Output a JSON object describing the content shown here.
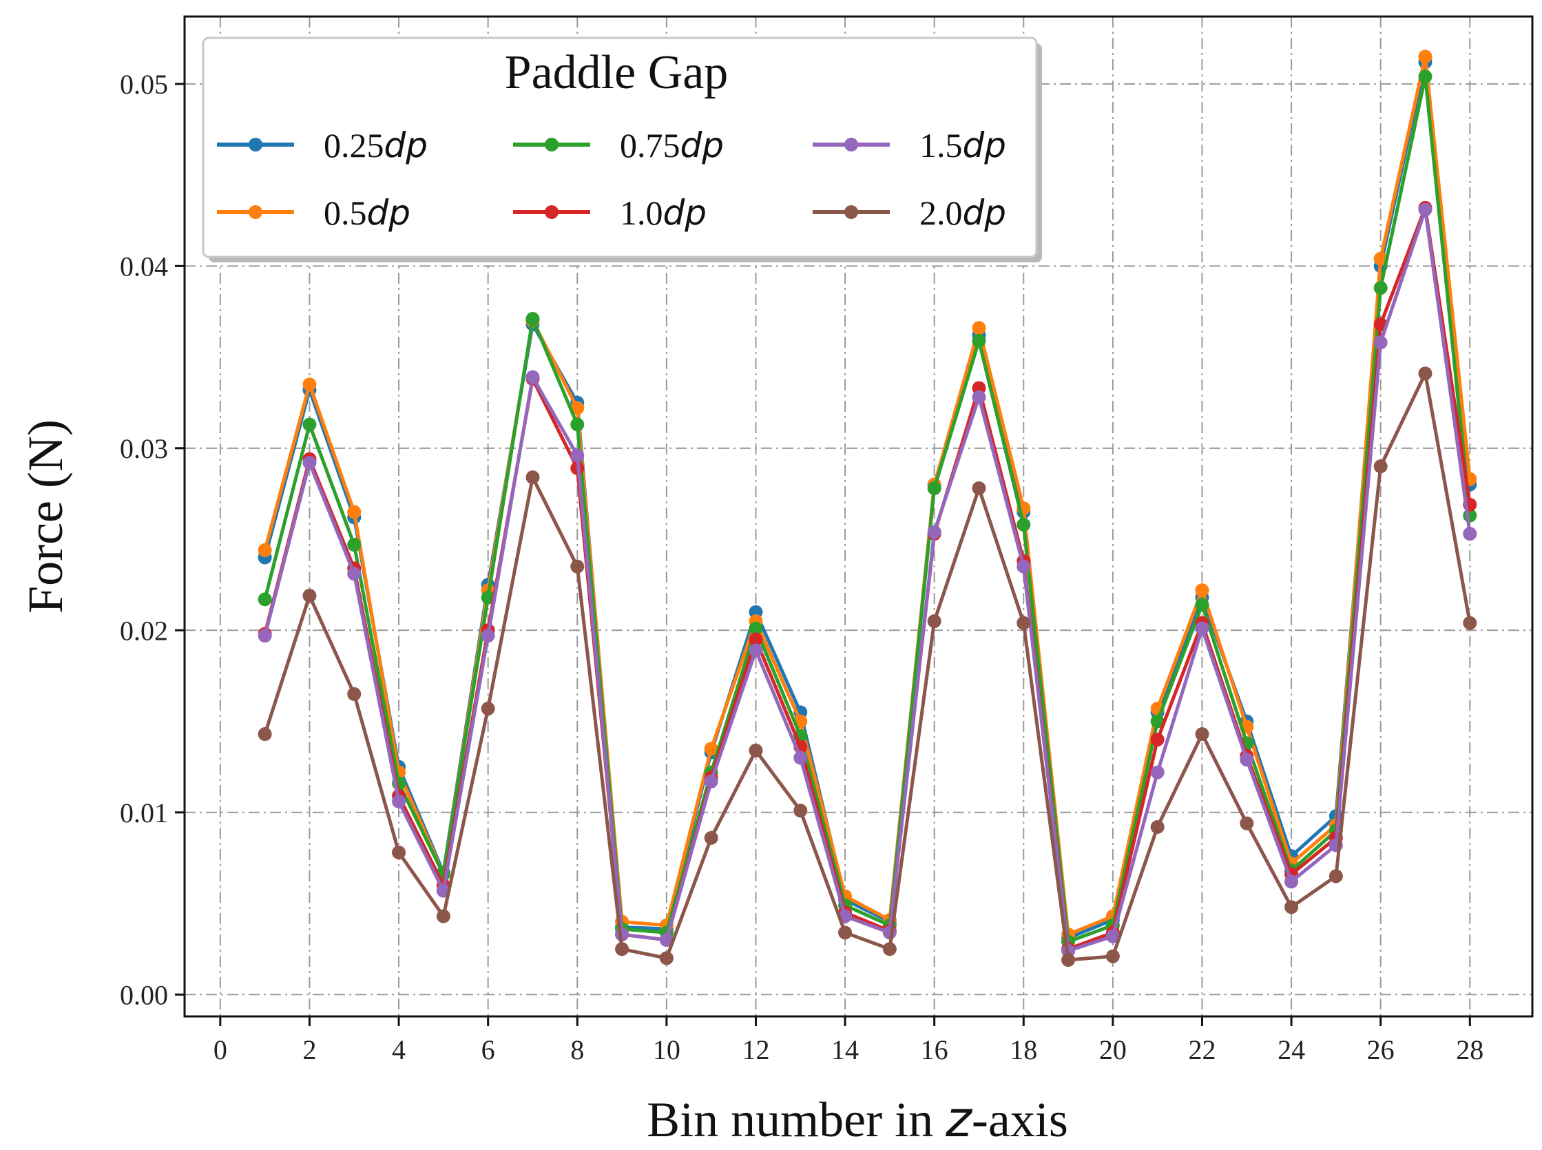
{
  "chart_data": {
    "type": "line",
    "xlabel": "Bin number in z-axis",
    "ylabel": "Force (N)",
    "xlim": [
      -0.8,
      29.4
    ],
    "ylim": [
      -0.0012,
      0.0537
    ],
    "x_ticks": [
      0,
      2,
      4,
      6,
      8,
      10,
      12,
      14,
      16,
      18,
      20,
      22,
      24,
      26,
      28
    ],
    "y_ticks": [
      0.0,
      0.01,
      0.02,
      0.03,
      0.04,
      0.05
    ],
    "y_tick_labels": [
      "0.00",
      "0.01",
      "0.02",
      "0.03",
      "0.04",
      "0.05"
    ],
    "grid": true,
    "legend": {
      "title": "Paddle Gap",
      "placement": "top-left",
      "columns": 3
    },
    "x": [
      1,
      2,
      3,
      4,
      5,
      6,
      7,
      8,
      9,
      10,
      11,
      12,
      13,
      14,
      15,
      16,
      17,
      18,
      19,
      20,
      21,
      22,
      23,
      24,
      25,
      26,
      27,
      28
    ],
    "series": [
      {
        "name": "0.25dp",
        "label_number": "0.25",
        "label_unit": "dp",
        "color": "#1f77b4",
        "values": [
          0.024,
          0.0332,
          0.0262,
          0.0125,
          0.0067,
          0.0225,
          0.0368,
          0.0325,
          0.0037,
          0.0036,
          0.0133,
          0.021,
          0.0155,
          0.0052,
          0.004,
          0.028,
          0.0362,
          0.0265,
          0.0031,
          0.0041,
          0.0155,
          0.0218,
          0.015,
          0.0076,
          0.0098,
          0.04,
          0.0512,
          0.028
        ]
      },
      {
        "name": "0.5dp",
        "label_number": "0.5",
        "label_unit": "dp",
        "color": "#ff7f0e",
        "values": [
          0.0244,
          0.0335,
          0.0265,
          0.0122,
          0.0066,
          0.0222,
          0.037,
          0.0322,
          0.004,
          0.0038,
          0.0135,
          0.0205,
          0.015,
          0.0054,
          0.0041,
          0.028,
          0.0366,
          0.0267,
          0.0033,
          0.0043,
          0.0157,
          0.0222,
          0.0147,
          0.0072,
          0.0093,
          0.0404,
          0.0515,
          0.0283
        ]
      },
      {
        "name": "0.75dp",
        "label_number": "0.75",
        "label_unit": "dp",
        "color": "#2ca02c",
        "values": [
          0.0217,
          0.0313,
          0.0247,
          0.0116,
          0.0066,
          0.0218,
          0.0371,
          0.0313,
          0.0036,
          0.0034,
          0.0122,
          0.0201,
          0.0142,
          0.0049,
          0.0038,
          0.0278,
          0.0359,
          0.0258,
          0.0029,
          0.0038,
          0.015,
          0.0214,
          0.0138,
          0.0068,
          0.009,
          0.0388,
          0.0504,
          0.0263
        ]
      },
      {
        "name": "1.0dp",
        "label_number": "1.0",
        "label_unit": "dp",
        "color": "#d62728",
        "values": [
          0.0198,
          0.0294,
          0.0234,
          0.0109,
          0.006,
          0.02,
          0.0338,
          0.0289,
          0.0033,
          0.003,
          0.0119,
          0.0195,
          0.0136,
          0.0045,
          0.0035,
          0.0253,
          0.0333,
          0.0238,
          0.0025,
          0.0034,
          0.014,
          0.0204,
          0.0131,
          0.0066,
          0.0086,
          0.0368,
          0.0432,
          0.0269
        ]
      },
      {
        "name": "1.5dp",
        "label_number": "1.5",
        "label_unit": "dp",
        "color": "#9467bd",
        "values": [
          0.0197,
          0.0292,
          0.0231,
          0.0106,
          0.0057,
          0.0197,
          0.0339,
          0.0296,
          0.0033,
          0.003,
          0.0117,
          0.0189,
          0.013,
          0.0043,
          0.0034,
          0.0254,
          0.0328,
          0.0235,
          0.0024,
          0.0032,
          0.0122,
          0.0201,
          0.0129,
          0.0062,
          0.0082,
          0.0358,
          0.0431,
          0.0253
        ]
      },
      {
        "name": "2.0dp",
        "label_number": "2.0",
        "label_unit": "dp",
        "color": "#8c564b",
        "values": [
          0.0143,
          0.0219,
          0.0165,
          0.0078,
          0.0043,
          0.0157,
          0.0284,
          0.0235,
          0.0025,
          0.002,
          0.0086,
          0.0134,
          0.0101,
          0.0034,
          0.0025,
          0.0205,
          0.0278,
          0.0204,
          0.0019,
          0.0021,
          0.0092,
          0.0143,
          0.0094,
          0.0048,
          0.0065,
          0.029,
          0.0341,
          0.0204
        ]
      }
    ]
  }
}
